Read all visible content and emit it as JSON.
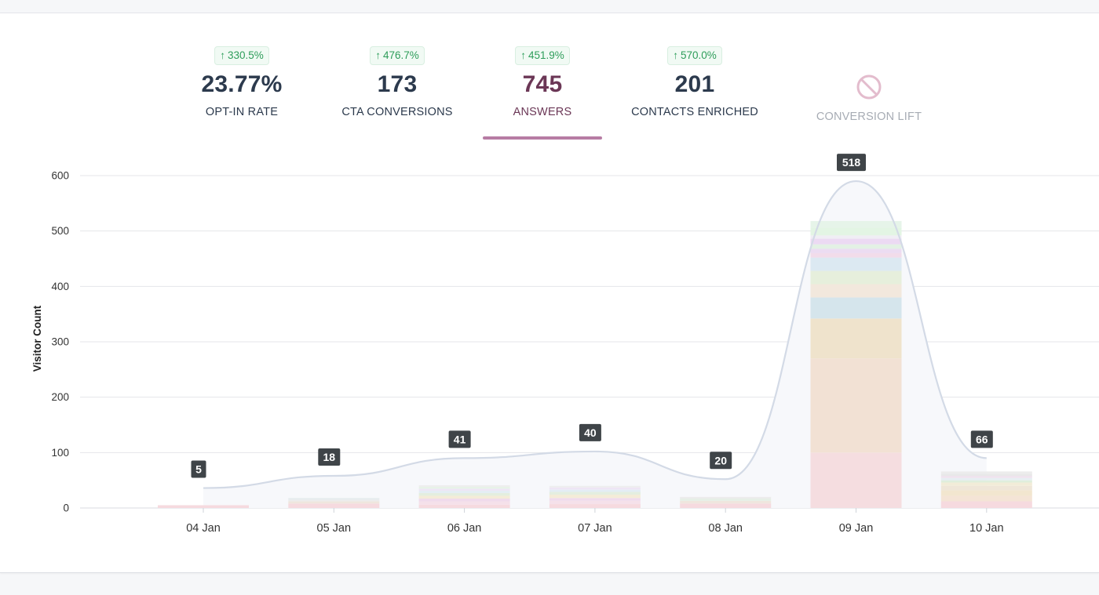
{
  "kpis": [
    {
      "change_arrow": "↑",
      "change": "330.5%",
      "value": "23.77%",
      "label": "OPT-IN RATE"
    },
    {
      "change_arrow": "↑",
      "change": "476.7%",
      "value": "173",
      "label": "CTA CONVERSIONS"
    },
    {
      "change_arrow": "↑",
      "change": "451.9%",
      "value": "745",
      "label": "ANSWERS",
      "active": true
    },
    {
      "change_arrow": "↑",
      "change": "570.0%",
      "value": "201",
      "label": "CONTACTS ENRICHED"
    },
    {
      "label": "CONVERSION LIFT",
      "icon": "disabled-icon",
      "disabled": true
    }
  ],
  "colors": {
    "accent": "#b77ca4",
    "active_text": "#6b3756",
    "badge_green": "#2e9d5a",
    "curve": "#d3dae6",
    "area": "#f7f8fb"
  },
  "chart_data": {
    "type": "bar",
    "ylabel": "Visitor Count",
    "ylim": [
      0,
      600
    ],
    "yticks": [
      0,
      100,
      200,
      300,
      400,
      500,
      600
    ],
    "grid": true,
    "categories": [
      "04 Jan",
      "05 Jan",
      "06 Jan",
      "07 Jan",
      "08 Jan",
      "09 Jan",
      "10 Jan"
    ],
    "values": [
      5,
      18,
      41,
      40,
      20,
      518,
      66
    ],
    "data_labels": [
      "5",
      "18",
      "41",
      "40",
      "20",
      "518",
      "66"
    ],
    "stacked_segments": [
      [
        {
          "value": 5,
          "color": "#f6dadf"
        }
      ],
      [
        {
          "value": 8,
          "color": "#f6dadf"
        },
        {
          "value": 4,
          "color": "#efe6de"
        },
        {
          "value": 3,
          "color": "#ececec"
        },
        {
          "value": 3,
          "color": "#e6ecef"
        }
      ],
      [
        {
          "value": 6,
          "color": "#f6dadf"
        },
        {
          "value": 6,
          "color": "#f5e1ea"
        },
        {
          "value": 5,
          "color": "#f0dbec"
        },
        {
          "value": 5,
          "color": "#f4ecd8"
        },
        {
          "value": 5,
          "color": "#e4eedf"
        },
        {
          "value": 4,
          "color": "#e3edf4"
        },
        {
          "value": 4,
          "color": "#eee6f5"
        },
        {
          "value": 3,
          "color": "#e6f3e6"
        },
        {
          "value": 3,
          "color": "#eeeeee"
        }
      ],
      [
        {
          "value": 7,
          "color": "#f6dadf"
        },
        {
          "value": 6,
          "color": "#f5e1ea"
        },
        {
          "value": 5,
          "color": "#f0dbec"
        },
        {
          "value": 6,
          "color": "#f4ecd8"
        },
        {
          "value": 5,
          "color": "#e4eedf"
        },
        {
          "value": 4,
          "color": "#e3edf4"
        },
        {
          "value": 4,
          "color": "#eee6f5"
        },
        {
          "value": 3,
          "color": "#eeeeee"
        }
      ],
      [
        {
          "value": 8,
          "color": "#f6dadf"
        },
        {
          "value": 5,
          "color": "#efe6de"
        },
        {
          "value": 4,
          "color": "#e6efe6"
        },
        {
          "value": 3,
          "color": "#ececec"
        }
      ],
      [
        {
          "value": 100,
          "color": "#f5dde0"
        },
        {
          "value": 170,
          "color": "#f2e1d4"
        },
        {
          "value": 72,
          "color": "#efe3cc"
        },
        {
          "value": 38,
          "color": "#d5e5ec"
        },
        {
          "value": 24,
          "color": "#f2e8dd"
        },
        {
          "value": 24,
          "color": "#e6efdc"
        },
        {
          "value": 24,
          "color": "#dce9f2"
        },
        {
          "value": 8,
          "color": "#f2dcea"
        },
        {
          "value": 8,
          "color": "#ecdcf2"
        },
        {
          "value": 8,
          "color": "#e3f1e5"
        },
        {
          "value": 10,
          "color": "#ecdaf3"
        },
        {
          "value": 6,
          "color": "#f0eef5"
        },
        {
          "value": 14,
          "color": "#e3f5e4"
        },
        {
          "value": 12,
          "color": "#e6f4e9"
        }
      ],
      [
        {
          "value": 12,
          "color": "#f6dadf"
        },
        {
          "value": 10,
          "color": "#f4e4d6"
        },
        {
          "value": 10,
          "color": "#f2e6cf"
        },
        {
          "value": 8,
          "color": "#efe6d8"
        },
        {
          "value": 6,
          "color": "#f2ecd8"
        },
        {
          "value": 4,
          "color": "#e0eedc"
        },
        {
          "value": 4,
          "color": "#e6eef2"
        },
        {
          "value": 4,
          "color": "#efe3ee"
        },
        {
          "value": 4,
          "color": "#e8e8e8"
        },
        {
          "value": 4,
          "color": "#ececec"
        }
      ]
    ],
    "trend_line": [
      {
        "x": "04 Jan",
        "y": 36
      },
      {
        "x": "05 Jan",
        "y": 58
      },
      {
        "x": "06 Jan",
        "y": 90
      },
      {
        "x": "07 Jan",
        "y": 102
      },
      {
        "x": "08 Jan",
        "y": 52
      },
      {
        "x": "09 Jan",
        "y": 590
      },
      {
        "x": "10 Jan",
        "y": 90
      }
    ]
  }
}
